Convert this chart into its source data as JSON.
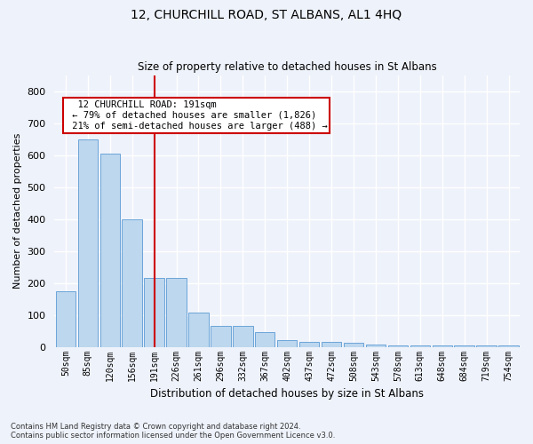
{
  "title": "12, CHURCHILL ROAD, ST ALBANS, AL1 4HQ",
  "subtitle": "Size of property relative to detached houses in St Albans",
  "xlabel": "Distribution of detached houses by size in St Albans",
  "ylabel": "Number of detached properties",
  "footnote1": "Contains HM Land Registry data © Crown copyright and database right 2024.",
  "footnote2": "Contains public sector information licensed under the Open Government Licence v3.0.",
  "bar_labels": [
    "50sqm",
    "85sqm",
    "120sqm",
    "156sqm",
    "191sqm",
    "226sqm",
    "261sqm",
    "296sqm",
    "332sqm",
    "367sqm",
    "402sqm",
    "437sqm",
    "472sqm",
    "508sqm",
    "543sqm",
    "578sqm",
    "613sqm",
    "648sqm",
    "684sqm",
    "719sqm",
    "754sqm"
  ],
  "bar_values": [
    175,
    650,
    605,
    400,
    215,
    215,
    107,
    65,
    65,
    45,
    20,
    15,
    15,
    12,
    7,
    5,
    5,
    5,
    5,
    5,
    5
  ],
  "bar_color": "#bdd7ee",
  "bar_edge_color": "#5b9bd5",
  "highlight_index": 4,
  "highlight_color": "#cc0000",
  "ylim": [
    0,
    850
  ],
  "yticks": [
    0,
    100,
    200,
    300,
    400,
    500,
    600,
    700,
    800
  ],
  "annotation_text": "  12 CHURCHILL ROAD: 191sqm  \n ← 79% of detached houses are smaller (1,826)\n 21% of semi-detached houses are larger (488) →",
  "annotation_box_color": "#ffffff",
  "annotation_box_edge": "#cc0000",
  "bg_color": "#eef2fa",
  "grid_color": "#ffffff",
  "title_fontsize": 10,
  "subtitle_fontsize": 8.5
}
